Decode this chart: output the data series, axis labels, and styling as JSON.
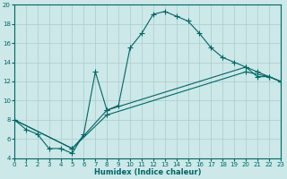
{
  "xlabel": "Humidex (Indice chaleur)",
  "bg_color": "#cce8e8",
  "grid_color": "#aacccc",
  "line_color": "#006666",
  "xlim": [
    0,
    23
  ],
  "ylim": [
    4,
    20
  ],
  "xticks": [
    0,
    1,
    2,
    3,
    4,
    5,
    6,
    7,
    8,
    9,
    10,
    11,
    12,
    13,
    14,
    15,
    16,
    17,
    18,
    19,
    20,
    21,
    22,
    23
  ],
  "yticks": [
    4,
    6,
    8,
    10,
    12,
    14,
    16,
    18,
    20
  ],
  "series1_x": [
    0,
    1,
    2,
    3,
    4,
    5,
    6,
    7,
    8,
    9,
    10,
    11,
    12,
    13,
    14,
    15,
    16,
    17,
    18,
    19,
    20,
    21,
    22,
    23
  ],
  "series1_y": [
    8.0,
    7.0,
    6.5,
    5.0,
    5.0,
    4.5,
    6.5,
    13.0,
    9.0,
    9.5,
    15.5,
    17.0,
    19.0,
    19.3,
    18.8,
    18.3,
    17.0,
    15.5,
    14.5,
    14.0,
    13.5,
    12.5,
    12.5,
    12.0
  ],
  "series2_x": [
    0,
    5,
    8,
    20,
    21,
    23
  ],
  "series2_y": [
    8.0,
    5.0,
    9.0,
    13.5,
    13.0,
    12.0
  ],
  "series3_x": [
    0,
    5,
    8,
    20,
    22,
    23
  ],
  "series3_y": [
    8.0,
    5.0,
    8.5,
    13.0,
    12.5,
    12.0
  ]
}
